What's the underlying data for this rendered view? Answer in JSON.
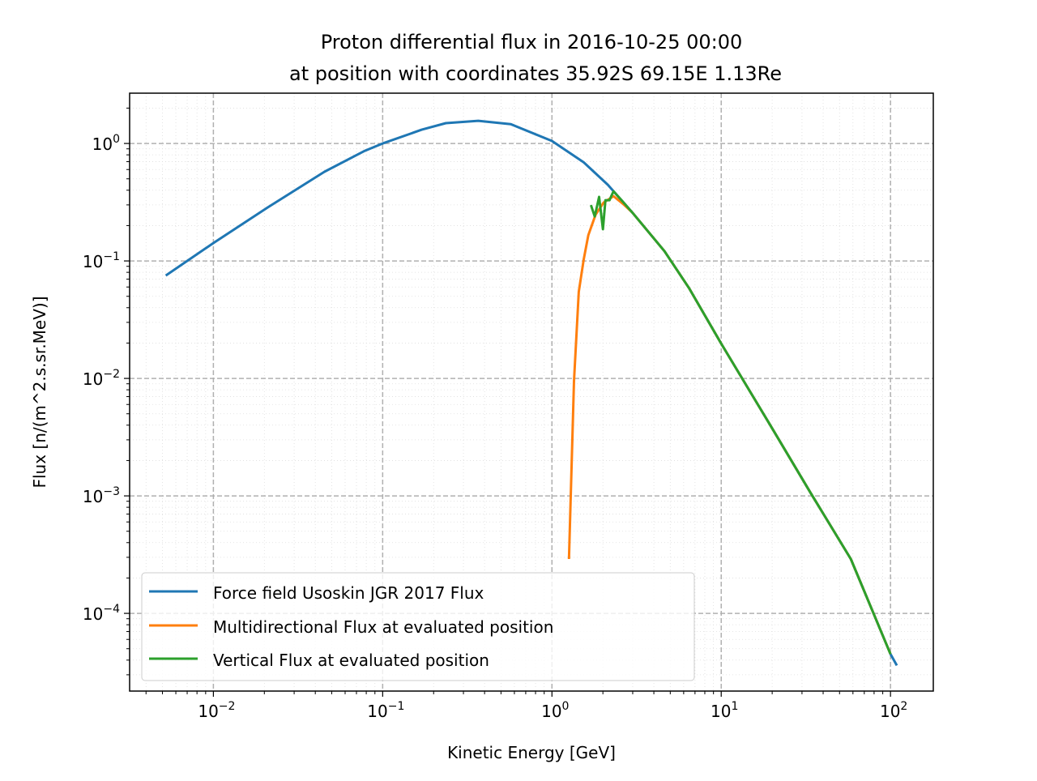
{
  "chart_data": {
    "type": "line",
    "title": [
      "Proton differential flux in 2016-10-25 00:00",
      "at position with coordinates 35.92S 69.15E 1.13Re"
    ],
    "xlabel": "Kinetic Energy [GeV]",
    "ylabel": "Flux [n/(m^2.s.sr.MeV)]",
    "xscale": "log",
    "yscale": "log",
    "xlim": [
      0.0032,
      179
    ],
    "ylim": [
      2.18e-05,
      2.68
    ],
    "grid": {
      "major": "dashed",
      "minor": "dotted"
    },
    "legend_position": "lower-left",
    "xticks": [
      {
        "value": 0.01,
        "label": "10^-2"
      },
      {
        "value": 0.1,
        "label": "10^-1"
      },
      {
        "value": 1,
        "label": "10^0"
      },
      {
        "value": 10,
        "label": "10^1"
      },
      {
        "value": 100,
        "label": "10^2"
      }
    ],
    "yticks": [
      {
        "value": 1,
        "label": "10^0"
      },
      {
        "value": 0.1,
        "label": "10^-1"
      },
      {
        "value": 0.01,
        "label": "10^-2"
      },
      {
        "value": 0.001,
        "label": "10^-3"
      },
      {
        "value": 0.0001,
        "label": "10^-4"
      }
    ],
    "series": [
      {
        "name": "Force field Usoskin JGR 2017 Flux",
        "color": "#1f77b4",
        "x": [
          0.00523,
          0.01,
          0.0209,
          0.0453,
          0.0785,
          0.1,
          0.17,
          0.236,
          0.367,
          0.57,
          1.0,
          1.54,
          2.14,
          2.98,
          4.62,
          6.44,
          10,
          19.4,
          33.6,
          58.3,
          100,
          109
        ],
        "y": [
          0.0751,
          0.142,
          0.285,
          0.574,
          0.867,
          1.0,
          1.31,
          1.49,
          1.56,
          1.46,
          1.05,
          0.69,
          0.445,
          0.259,
          0.121,
          0.059,
          0.0198,
          0.00404,
          0.00107,
          0.00029,
          4.5e-05,
          3.6e-05
        ]
      },
      {
        "name": "Multidirectional Flux at evaluated position",
        "color": "#ff7f0e",
        "x": [
          1.26,
          1.35,
          1.44,
          1.54,
          1.64,
          1.81,
          2.02,
          2.31,
          2.67,
          2.98,
          4.62,
          6.44,
          10,
          19.4,
          33.6,
          58.3,
          100
        ],
        "y": [
          0.00029,
          0.0095,
          0.0547,
          0.103,
          0.166,
          0.247,
          0.314,
          0.356,
          0.3,
          0.259,
          0.121,
          0.059,
          0.0198,
          0.00404,
          0.00107,
          0.00029,
          4.5e-05
        ]
      },
      {
        "name": "Vertical Flux at evaluated position",
        "color": "#2ca02c",
        "x": [
          1.7,
          1.79,
          1.9,
          2.0,
          2.07,
          2.19,
          2.24,
          2.31,
          2.67,
          2.98,
          4.62,
          6.44,
          10,
          19.4,
          33.6,
          58.3,
          100
        ],
        "y": [
          0.299,
          0.239,
          0.351,
          0.186,
          0.329,
          0.329,
          0.356,
          0.392,
          0.31,
          0.259,
          0.121,
          0.059,
          0.0198,
          0.00404,
          0.00107,
          0.00029,
          4.5e-05
        ]
      }
    ]
  }
}
